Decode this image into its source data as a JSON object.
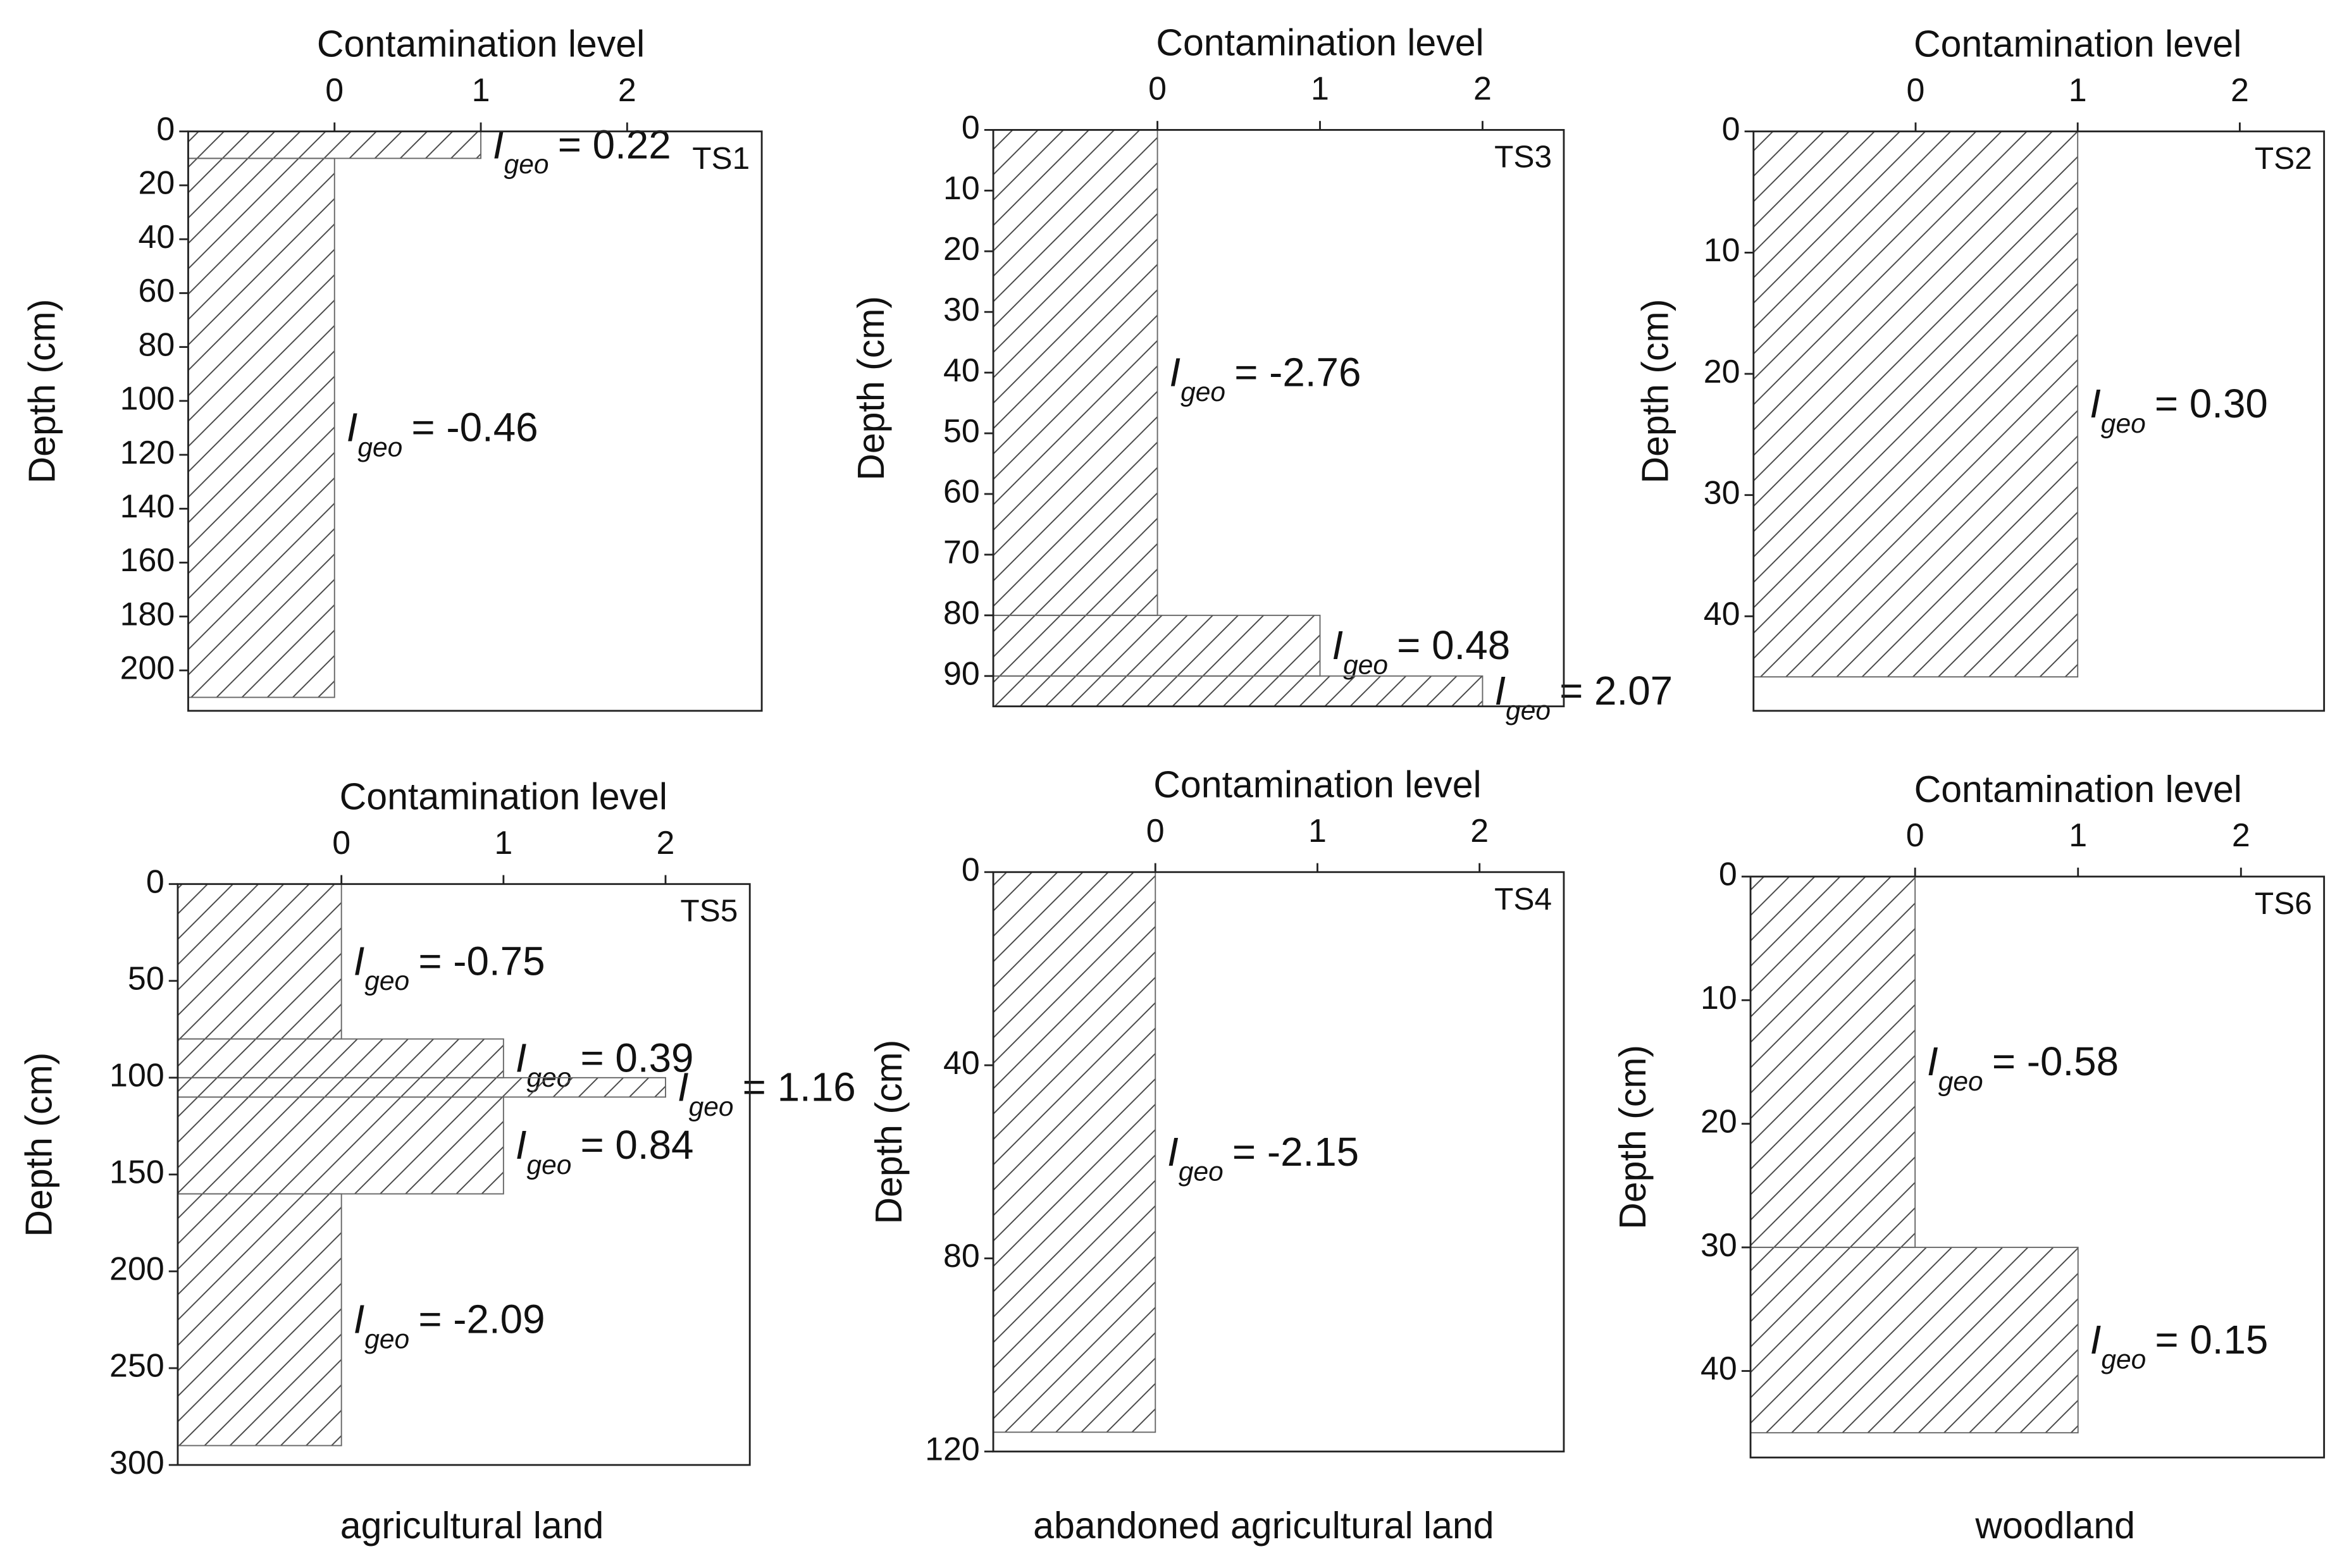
{
  "captions": [
    "agricultural land",
    "abandoned agricultural land",
    "woodland"
  ],
  "chart_data": [
    {
      "type": "depth-bar",
      "tag": "TS1",
      "xlabel": "Contamination level",
      "ylabel": "Depth (cm)",
      "xlim": [
        -1.0,
        2.92
      ],
      "xticks": [
        0,
        1,
        2
      ],
      "ylim": [
        0,
        215
      ],
      "yticks": [
        0,
        20,
        40,
        60,
        80,
        100,
        120,
        140,
        160,
        180,
        200
      ],
      "depth_top": [
        0,
        10
      ],
      "depth_bottom": [
        10,
        210
      ],
      "values": [
        1,
        0
      ],
      "annotation_symbol": "I",
      "annotation_subscript": "geo",
      "annotations": [
        "= 0.22",
        "= -0.46"
      ]
    },
    {
      "type": "depth-bar",
      "tag": "TS3",
      "xlabel": "Contamination level",
      "ylabel": "Depth (cm)",
      "xlim": [
        -1.01,
        2.5
      ],
      "xticks": [
        0,
        1,
        2
      ],
      "ylim": [
        0,
        95
      ],
      "yticks": [
        0,
        10,
        20,
        30,
        40,
        50,
        60,
        70,
        80,
        90
      ],
      "depth_top": [
        0,
        80,
        90
      ],
      "depth_bottom": [
        80,
        90,
        95
      ],
      "values": [
        0,
        1,
        2
      ],
      "annotation_symbol": "I",
      "annotation_subscript": "geo",
      "annotations": [
        "= -2.76",
        "= 0.48",
        "= 2.07"
      ]
    },
    {
      "type": "depth-bar",
      "tag": "TS2",
      "xlabel": "Contamination level",
      "ylabel": "Depth (cm)",
      "xlim": [
        -1.0,
        2.52
      ],
      "xticks": [
        0,
        1,
        2
      ],
      "ylim": [
        0,
        47.8
      ],
      "yticks": [
        0,
        10,
        20,
        30,
        40
      ],
      "depth_top": [
        0
      ],
      "depth_bottom": [
        45
      ],
      "values": [
        1
      ],
      "annotation_symbol": "I",
      "annotation_subscript": "geo",
      "annotations": [
        "= 0.30"
      ]
    },
    {
      "type": "depth-bar",
      "tag": "TS5",
      "xlabel": "Contamination level",
      "ylabel": "Depth (cm)",
      "xlim": [
        -1.01,
        2.52
      ],
      "xticks": [
        0,
        1,
        2
      ],
      "ylim": [
        0,
        300
      ],
      "yticks": [
        0,
        50,
        100,
        150,
        200,
        250,
        300
      ],
      "depth_top": [
        0,
        80,
        100,
        110,
        160
      ],
      "depth_bottom": [
        80,
        100,
        110,
        160,
        290
      ],
      "values": [
        0,
        1,
        2,
        1,
        0
      ],
      "annotation_symbol": "I",
      "annotation_subscript": "geo",
      "annotations": [
        "= -0.75",
        "= 0.39",
        "= 1.16",
        "= 0.84",
        "= -2.09"
      ]
    },
    {
      "type": "depth-bar",
      "tag": "TS4",
      "xlabel": "Contamination level",
      "ylabel": "Depth (cm)",
      "xlim": [
        -1.0,
        2.52
      ],
      "xticks": [
        0,
        1,
        2
      ],
      "ylim": [
        0,
        120
      ],
      "yticks": [
        0,
        40,
        80,
        120
      ],
      "depth_top": [
        0
      ],
      "depth_bottom": [
        116
      ],
      "values": [
        0
      ],
      "annotation_symbol": "I",
      "annotation_subscript": "geo",
      "annotations": [
        "= -2.15"
      ]
    },
    {
      "type": "depth-bar",
      "tag": "TS6",
      "xlabel": "Contamination level",
      "ylabel": "Depth (cm)",
      "xlim": [
        -1.01,
        2.51
      ],
      "xticks": [
        0,
        1,
        2
      ],
      "ylim": [
        0,
        47
      ],
      "yticks": [
        0,
        10,
        20,
        30,
        40
      ],
      "depth_top": [
        0,
        30
      ],
      "depth_bottom": [
        30,
        45
      ],
      "values": [
        0,
        1
      ],
      "annotation_symbol": "I",
      "annotation_subscript": "geo",
      "annotations": [
        "= -0.58",
        "= 0.15"
      ]
    }
  ]
}
